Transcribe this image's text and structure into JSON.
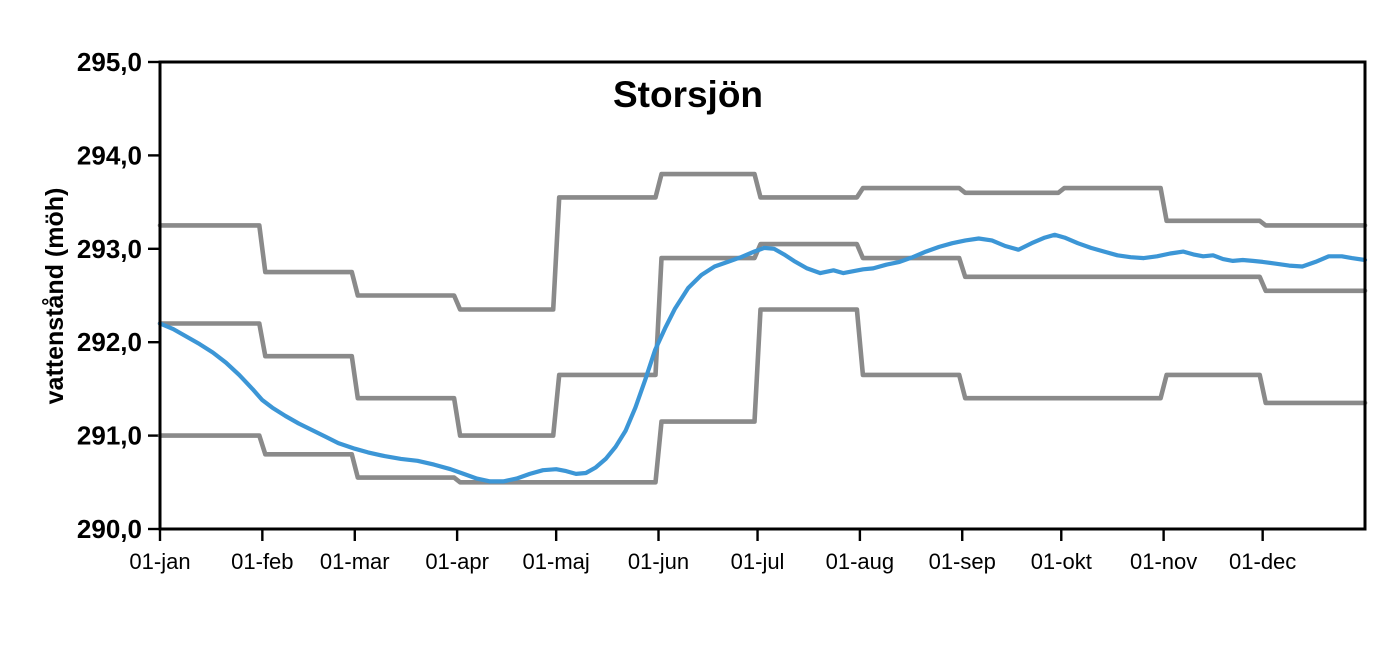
{
  "chart_data": {
    "type": "line",
    "title": "Storsjön",
    "xlabel": "",
    "ylabel": "vattenstånd (möh)",
    "ylim": [
      290,
      295
    ],
    "x_range_days": 365,
    "grid": false,
    "legend": "none",
    "y_tick_values": [
      290,
      291,
      292,
      293,
      294,
      295
    ],
    "y_tick_labels": [
      "290,0",
      "291,0",
      "292,0",
      "293,0",
      "294,0",
      "295,0"
    ],
    "x_tick_labels": [
      "01-jan",
      "01-feb",
      "01-mar",
      "01-apr",
      "01-maj",
      "01-jun",
      "01-jul",
      "01-aug",
      "01-sep",
      "01-okt",
      "01-nov",
      "01-dec"
    ],
    "month_boundary_days": [
      0,
      31,
      59,
      90,
      120,
      151,
      181,
      212,
      243,
      273,
      304,
      334,
      365
    ],
    "colors": {
      "limit_lines": "#8A8A8A",
      "water_level_line": "#3C96D6",
      "axis": "#000000"
    },
    "series": [
      {
        "name": "upper-limit-step-line",
        "type": "step",
        "color": "#8A8A8A",
        "monthly_values": [
          293.25,
          292.75,
          292.5,
          292.35,
          293.55,
          293.8,
          293.55,
          293.65,
          293.6,
          293.65,
          293.3,
          293.25
        ]
      },
      {
        "name": "middle-guide-step-line",
        "type": "step",
        "color": "#8A8A8A",
        "monthly_values": [
          292.2,
          291.85,
          291.4,
          291.0,
          291.65,
          292.9,
          293.05,
          292.9,
          292.7,
          292.7,
          292.7,
          292.55
        ]
      },
      {
        "name": "lower-limit-step-line",
        "type": "step",
        "color": "#8A8A8A",
        "monthly_values": [
          291.0,
          290.8,
          290.55,
          290.5,
          290.5,
          291.15,
          292.35,
          291.65,
          291.4,
          291.4,
          291.65,
          291.35
        ]
      },
      {
        "name": "observed-water-level",
        "type": "line",
        "color": "#3C96D6",
        "points": [
          [
            0,
            292.2
          ],
          [
            4,
            292.14
          ],
          [
            8,
            292.06
          ],
          [
            12,
            291.98
          ],
          [
            16,
            291.89
          ],
          [
            20,
            291.78
          ],
          [
            24,
            291.65
          ],
          [
            28,
            291.5
          ],
          [
            31,
            291.38
          ],
          [
            34,
            291.3
          ],
          [
            38,
            291.21
          ],
          [
            42,
            291.13
          ],
          [
            46,
            291.06
          ],
          [
            50,
            290.99
          ],
          [
            54,
            290.92
          ],
          [
            59,
            290.86
          ],
          [
            63,
            290.82
          ],
          [
            68,
            290.78
          ],
          [
            73,
            290.75
          ],
          [
            78,
            290.73
          ],
          [
            83,
            290.69
          ],
          [
            88,
            290.64
          ],
          [
            92,
            290.59
          ],
          [
            96,
            290.54
          ],
          [
            100,
            290.51
          ],
          [
            104,
            290.51
          ],
          [
            108,
            290.54
          ],
          [
            112,
            290.59
          ],
          [
            116,
            290.63
          ],
          [
            120,
            290.64
          ],
          [
            123,
            290.62
          ],
          [
            126,
            290.59
          ],
          [
            129,
            290.6
          ],
          [
            132,
            290.66
          ],
          [
            135,
            290.75
          ],
          [
            138,
            290.88
          ],
          [
            141,
            291.05
          ],
          [
            144,
            291.3
          ],
          [
            147,
            291.6
          ],
          [
            150,
            291.92
          ],
          [
            153,
            292.15
          ],
          [
            156,
            292.36
          ],
          [
            160,
            292.58
          ],
          [
            164,
            292.72
          ],
          [
            168,
            292.81
          ],
          [
            172,
            292.86
          ],
          [
            176,
            292.91
          ],
          [
            180,
            292.97
          ],
          [
            183,
            293.01
          ],
          [
            186,
            293.0
          ],
          [
            189,
            292.94
          ],
          [
            192,
            292.87
          ],
          [
            196,
            292.79
          ],
          [
            200,
            292.74
          ],
          [
            204,
            292.77
          ],
          [
            207,
            292.74
          ],
          [
            210,
            292.76
          ],
          [
            213,
            292.78
          ],
          [
            216,
            292.79
          ],
          [
            220,
            292.83
          ],
          [
            224,
            292.86
          ],
          [
            228,
            292.91
          ],
          [
            232,
            292.97
          ],
          [
            236,
            293.02
          ],
          [
            240,
            293.06
          ],
          [
            244,
            293.09
          ],
          [
            248,
            293.11
          ],
          [
            252,
            293.09
          ],
          [
            256,
            293.03
          ],
          [
            260,
            292.99
          ],
          [
            264,
            293.06
          ],
          [
            268,
            293.12
          ],
          [
            271,
            293.15
          ],
          [
            274,
            293.12
          ],
          [
            278,
            293.06
          ],
          [
            282,
            293.01
          ],
          [
            286,
            292.97
          ],
          [
            290,
            292.93
          ],
          [
            294,
            292.91
          ],
          [
            298,
            292.9
          ],
          [
            302,
            292.92
          ],
          [
            306,
            292.95
          ],
          [
            310,
            292.97
          ],
          [
            313,
            292.94
          ],
          [
            316,
            292.92
          ],
          [
            319,
            292.93
          ],
          [
            322,
            292.89
          ],
          [
            325,
            292.87
          ],
          [
            328,
            292.88
          ],
          [
            331,
            292.87
          ],
          [
            334,
            292.86
          ],
          [
            338,
            292.84
          ],
          [
            342,
            292.82
          ],
          [
            346,
            292.81
          ],
          [
            350,
            292.86
          ],
          [
            354,
            292.92
          ],
          [
            358,
            292.92
          ],
          [
            361,
            292.9
          ],
          [
            365,
            292.88
          ]
        ]
      }
    ]
  }
}
